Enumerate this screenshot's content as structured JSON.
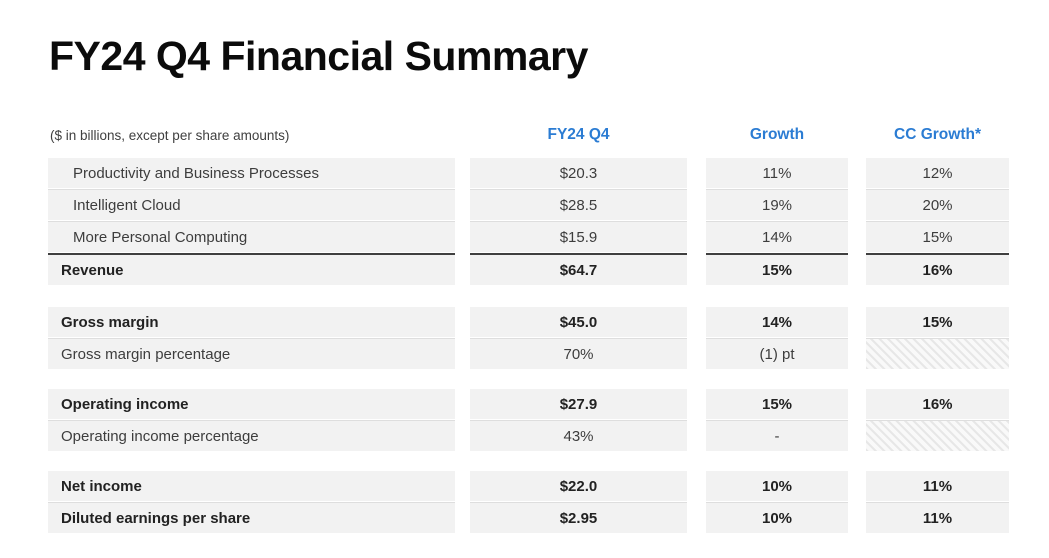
{
  "page": {
    "title": "FY24 Q4 Financial Summary",
    "units_note": "($ in billions, except per share amounts)"
  },
  "colors": {
    "accent_blue": "#2b7cd3",
    "row_band": "#f2f2f2",
    "total_rule": "#3f3f3f"
  },
  "table": {
    "columns": {
      "q4": "FY24 Q4",
      "growth": "Growth",
      "cc": "CC Growth*"
    },
    "sections": [
      {
        "name": "revenue",
        "rows": [
          {
            "label": "Productivity and Business Processes",
            "q4": "$20.3",
            "growth": "11%",
            "cc": "12%"
          },
          {
            "label": "Intelligent Cloud",
            "q4": "$28.5",
            "growth": "19%",
            "cc": "20%"
          },
          {
            "label": "More Personal Computing",
            "q4": "$15.9",
            "growth": "14%",
            "cc": "15%"
          },
          {
            "label": "Revenue",
            "q4": "$64.7",
            "growth": "15%",
            "cc": "16%"
          }
        ]
      },
      {
        "name": "gross-margin",
        "rows": [
          {
            "label": "Gross margin",
            "q4": "$45.0",
            "growth": "14%",
            "cc": "15%"
          },
          {
            "label": "Gross margin percentage",
            "q4": "70%",
            "growth": "(1) pt",
            "cc": ""
          }
        ]
      },
      {
        "name": "operating-income",
        "rows": [
          {
            "label": "Operating income",
            "q4": "$27.9",
            "growth": "15%",
            "cc": "16%"
          },
          {
            "label": "Operating income percentage",
            "q4": "43%",
            "growth": "-",
            "cc": ""
          }
        ]
      },
      {
        "name": "net-income",
        "rows": [
          {
            "label": "Net income",
            "q4": "$22.0",
            "growth": "10%",
            "cc": "11%"
          },
          {
            "label": "Diluted earnings per share",
            "q4": "$2.95",
            "growth": "10%",
            "cc": "11%"
          }
        ]
      }
    ]
  }
}
